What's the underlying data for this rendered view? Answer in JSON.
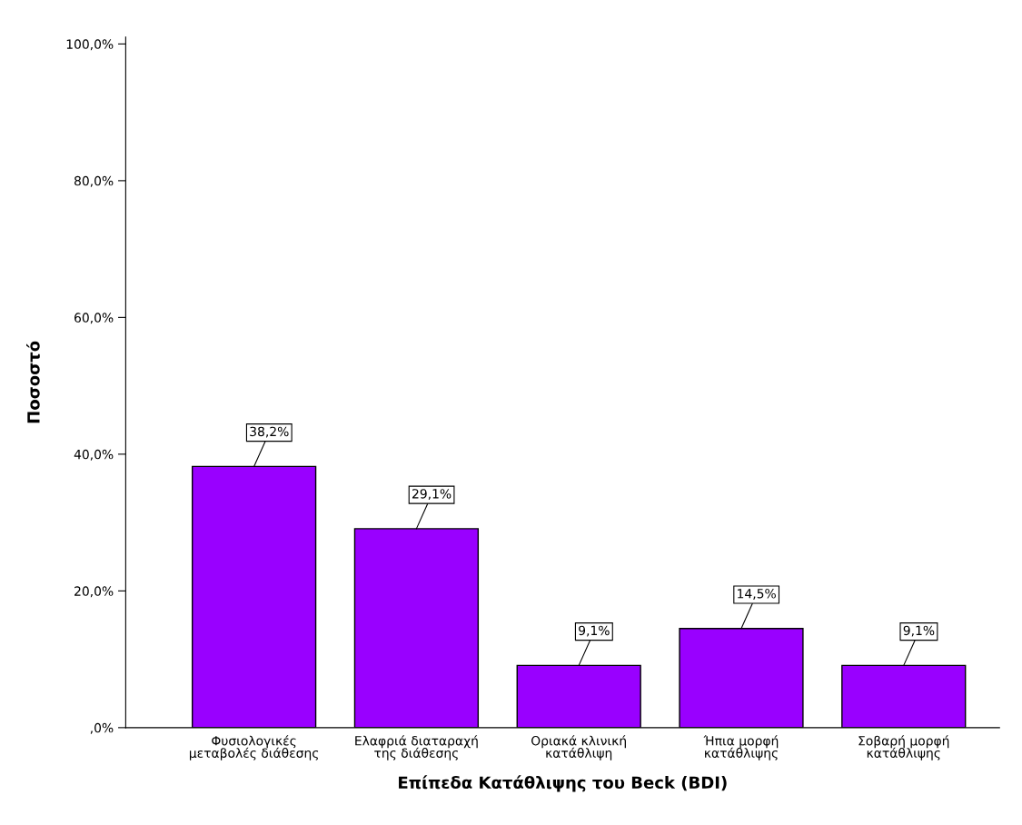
{
  "chart_data": {
    "type": "bar",
    "xlabel": "Επίπεδα Κατάθλιψης του Beck (BDI)",
    "ylabel": "Ποσοστό",
    "categories": [
      "Φυσιολογικές\nμεταβολές διάθεσης",
      "Ελαφριά διαταραχή\nτης διάθεσης",
      "Οριακά κλινική\nκατάθλιψη",
      "Ήπια μορφή\nκατάθλιψης",
      "Σοβαρή μορφή\nκατάθλιψης"
    ],
    "values": [
      38.2,
      29.1,
      9.1,
      14.5,
      9.1
    ],
    "value_labels": [
      "38,2%",
      "29,1%",
      "9,1%",
      "14,5%",
      "9,1%"
    ],
    "color": "#9900ff",
    "ylim": [
      0,
      101
    ],
    "yticks": [
      {
        "value": 0,
        "label": ",0%"
      },
      {
        "value": 20,
        "label": "20,0%"
      },
      {
        "value": 40,
        "label": "40,0%"
      },
      {
        "value": 60,
        "label": "60,0%"
      },
      {
        "value": 80,
        "label": "80,0%"
      },
      {
        "value": 100,
        "label": "100,0%"
      }
    ],
    "grid": false,
    "legend": false
  }
}
